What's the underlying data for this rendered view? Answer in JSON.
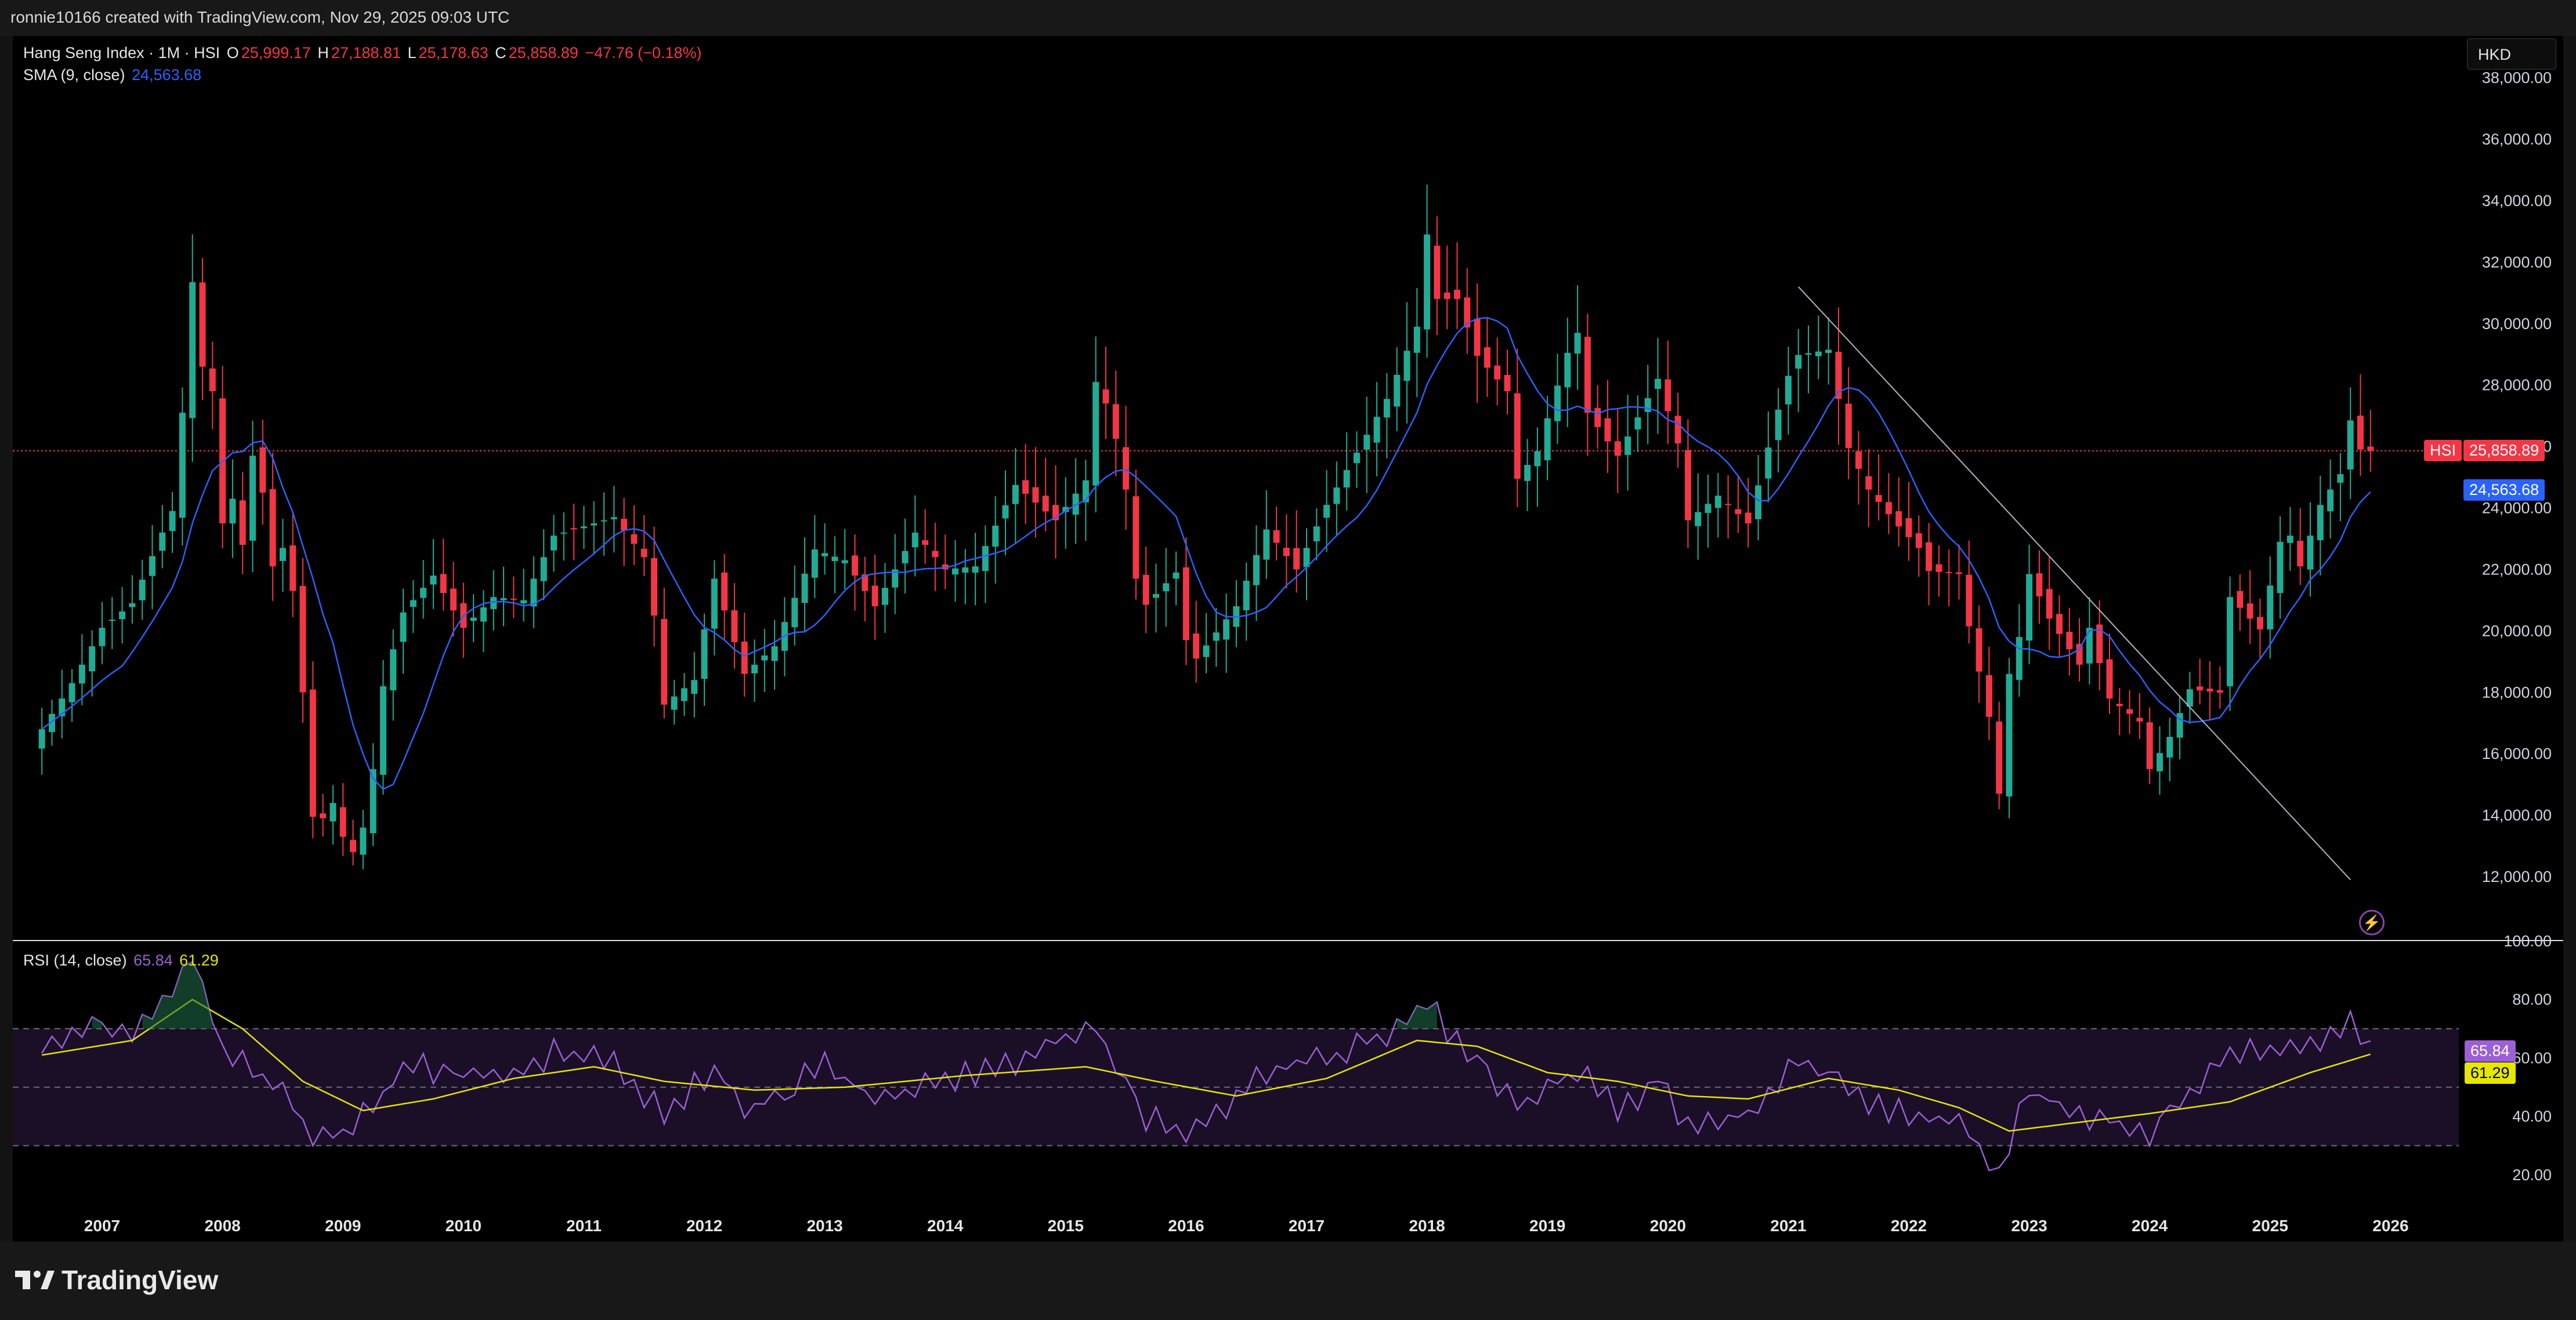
{
  "header": {
    "credit": "ronnie10166 created with TradingView.com, Nov 29, 2025 09:03 UTC"
  },
  "footer": {
    "brand": "TradingView"
  },
  "legend": {
    "title": "Hang Seng Index · 1M · HSI",
    "o_label": "O",
    "o_value": "25,999.17",
    "h_label": "H",
    "h_value": "27,188.81",
    "l_label": "L",
    "l_value": "25,178.63",
    "c_label": "C",
    "c_value": "25,858.89",
    "change": "−47.76 (−0.18%)",
    "sma_label": "SMA (9, close)",
    "sma_value": "24,563.68",
    "rsi_label": "RSI (14, close)",
    "rsi_value": "65.84",
    "rsi_ma_value": "61.29"
  },
  "controls": {
    "currency": "HKD"
  },
  "badges": {
    "symbol": "HSI",
    "last_price": "25,858.89",
    "sma_price": "24,563.68",
    "rsi": "65.84",
    "rsi_ma": "61.29"
  },
  "colors": {
    "up": "#22ab94",
    "down": "#f23645",
    "sma": "#2962ff",
    "rsi": "#9c5fd6",
    "rsi_ma": "#e6e600",
    "trendline": "#b2b5be",
    "background": "#000000"
  },
  "chart_data": [
    {
      "type": "candlestick",
      "title": "Hang Seng Index · 1M · HSI",
      "interval": "monthly",
      "ylim": [
        11000,
        38000
      ],
      "y_ticks": [
        "12,000.00",
        "14,000.00",
        "16,000.00",
        "18,000.00",
        "20,000.00",
        "22,000.00",
        "24,000.00",
        "26,000.00",
        "28,000.00",
        "30,000.00",
        "32,000.00",
        "34,000.00",
        "36,000.00",
        "38,000.00"
      ],
      "x_ticks": [
        "2007",
        "2008",
        "2009",
        "2010",
        "2011",
        "2012",
        "2013",
        "2014",
        "2015",
        "2016",
        "2017",
        "2018",
        "2019",
        "2020",
        "2021",
        "2022",
        "2023",
        "2024",
        "2025",
        "2026"
      ],
      "last_price": 25858.89,
      "sma_period": 9,
      "closes_anchor": [
        [
          "2006-07",
          16800
        ],
        [
          "2006-10",
          18300
        ],
        [
          "2007-01",
          20100
        ],
        [
          "2007-04",
          20900
        ],
        [
          "2007-07",
          23200
        ],
        [
          "2007-08",
          23900
        ],
        [
          "2007-09",
          27100
        ],
        [
          "2007-10",
          31350
        ],
        [
          "2007-11",
          28600
        ],
        [
          "2007-12",
          27800
        ],
        [
          "2008-01",
          23500
        ],
        [
          "2008-02",
          24300
        ],
        [
          "2008-03",
          22800
        ],
        [
          "2008-04",
          25700
        ],
        [
          "2008-05",
          24500
        ],
        [
          "2008-06",
          22100
        ],
        [
          "2008-07",
          22700
        ],
        [
          "2008-08",
          21300
        ],
        [
          "2008-09",
          18000
        ],
        [
          "2008-10",
          13950
        ],
        [
          "2008-11",
          13900
        ],
        [
          "2008-12",
          14400
        ],
        [
          "2009-01",
          13300
        ],
        [
          "2009-02",
          12800
        ],
        [
          "2009-03",
          13600
        ],
        [
          "2009-04",
          15500
        ],
        [
          "2009-05",
          18200
        ],
        [
          "2009-07",
          20600
        ],
        [
          "2009-10",
          21800
        ],
        [
          "2010-01",
          20100
        ],
        [
          "2010-04",
          21100
        ],
        [
          "2010-07",
          21000
        ],
        [
          "2010-10",
          23100
        ],
        [
          "2011-01",
          23400
        ],
        [
          "2011-04",
          23700
        ],
        [
          "2011-07",
          22400
        ],
        [
          "2011-08",
          20500
        ],
        [
          "2011-09",
          17600
        ],
        [
          "2011-12",
          18400
        ],
        [
          "2012-02",
          21700
        ],
        [
          "2012-05",
          18600
        ],
        [
          "2012-08",
          19500
        ],
        [
          "2012-12",
          22650
        ],
        [
          "2013-03",
          22300
        ],
        [
          "2013-06",
          20800
        ],
        [
          "2013-10",
          23200
        ],
        [
          "2014-01",
          22000
        ],
        [
          "2014-04",
          22100
        ],
        [
          "2014-08",
          24750
        ],
        [
          "2014-12",
          23600
        ],
        [
          "2015-03",
          24900
        ],
        [
          "2015-04",
          28100
        ],
        [
          "2015-05",
          27400
        ],
        [
          "2015-06",
          26250
        ],
        [
          "2015-07",
          24600
        ],
        [
          "2015-08",
          21700
        ],
        [
          "2015-09",
          20850
        ],
        [
          "2015-12",
          21900
        ],
        [
          "2016-01",
          19700
        ],
        [
          "2016-02",
          19100
        ],
        [
          "2016-06",
          20800
        ],
        [
          "2016-09",
          23300
        ],
        [
          "2016-12",
          22000
        ],
        [
          "2017-03",
          24100
        ],
        [
          "2017-06",
          25800
        ],
        [
          "2017-09",
          27550
        ],
        [
          "2017-12",
          29900
        ],
        [
          "2018-01",
          32900
        ],
        [
          "2018-02",
          30800
        ],
        [
          "2018-04",
          30800
        ],
        [
          "2018-06",
          28950
        ],
        [
          "2018-09",
          27800
        ],
        [
          "2018-10",
          24950
        ],
        [
          "2018-12",
          25850
        ],
        [
          "2019-03",
          29050
        ],
        [
          "2019-04",
          29700
        ],
        [
          "2019-05",
          27100
        ],
        [
          "2019-08",
          25700
        ],
        [
          "2019-12",
          28200
        ],
        [
          "2020-02",
          26100
        ],
        [
          "2020-03",
          23600
        ],
        [
          "2020-06",
          24400
        ],
        [
          "2020-09",
          23500
        ],
        [
          "2020-12",
          27200
        ],
        [
          "2021-01",
          28300
        ],
        [
          "2021-02",
          28980
        ],
        [
          "2021-05",
          29150
        ],
        [
          "2021-07",
          25950
        ],
        [
          "2021-09",
          24600
        ],
        [
          "2021-12",
          23400
        ],
        [
          "2022-02",
          22700
        ],
        [
          "2022-03",
          21950
        ],
        [
          "2022-06",
          21850
        ],
        [
          "2022-07",
          20150
        ],
        [
          "2022-09",
          17200
        ],
        [
          "2022-10",
          14700
        ],
        [
          "2022-11",
          18600
        ],
        [
          "2022-12",
          19800
        ],
        [
          "2023-01",
          21850
        ],
        [
          "2023-03",
          20400
        ],
        [
          "2023-06",
          18900
        ],
        [
          "2023-07",
          20100
        ],
        [
          "2023-09",
          17800
        ],
        [
          "2023-12",
          17050
        ],
        [
          "2024-01",
          15500
        ],
        [
          "2024-03",
          16550
        ],
        [
          "2024-05",
          18100
        ],
        [
          "2024-08",
          17990
        ],
        [
          "2024-09",
          21100
        ],
        [
          "2024-12",
          20050
        ],
        [
          "2025-02",
          22900
        ],
        [
          "2025-03",
          23100
        ],
        [
          "2025-04",
          22100
        ],
        [
          "2025-06",
          24100
        ],
        [
          "2025-08",
          25100
        ],
        [
          "2025-09",
          26850
        ],
        [
          "2025-10",
          25900
        ],
        [
          "2025-11",
          25858.89
        ]
      ],
      "last_bar": {
        "open": 25999.17,
        "high": 27188.81,
        "low": 25178.63,
        "close": 25858.89
      },
      "sma_last": 24563.68,
      "trendline": {
        "from": [
          "2021-02",
          31200
        ],
        "to": [
          "2025-09",
          11900
        ]
      }
    },
    {
      "type": "line",
      "title": "RSI (14, close)",
      "ylim": [
        15,
        100
      ],
      "y_ticks": [
        "20.00",
        "40.00",
        "60.00",
        "80.00",
        "100.00"
      ],
      "band": [
        30,
        70
      ],
      "midline": 50,
      "series": [
        {
          "name": "RSI",
          "last": 65.84
        },
        {
          "name": "RSI-based MA",
          "last": 61.29
        }
      ],
      "rsi_anchor": [
        [
          "2006-07",
          63
        ],
        [
          "2006-10",
          66
        ],
        [
          "2007-01",
          72
        ],
        [
          "2007-04",
          70
        ],
        [
          "2007-07",
          80
        ],
        [
          "2007-10",
          94
        ],
        [
          "2007-12",
          74
        ],
        [
          "2008-01",
          60
        ],
        [
          "2008-03",
          58
        ],
        [
          "2008-06",
          52
        ],
        [
          "2008-09",
          38
        ],
        [
          "2008-10",
          32
        ],
        [
          "2009-01",
          34
        ],
        [
          "2009-04",
          43
        ],
        [
          "2009-07",
          58
        ],
        [
          "2010-01",
          54
        ],
        [
          "2010-07",
          55
        ],
        [
          "2010-10",
          62
        ],
        [
          "2011-04",
          59
        ],
        [
          "2011-09",
          40
        ],
        [
          "2012-02",
          57
        ],
        [
          "2012-05",
          42
        ],
        [
          "2013-01",
          57
        ],
        [
          "2013-06",
          46
        ],
        [
          "2014-01",
          52
        ],
        [
          "2014-08",
          59
        ],
        [
          "2015-04",
          72
        ],
        [
          "2015-07",
          50
        ],
        [
          "2015-09",
          40
        ],
        [
          "2016-02",
          35
        ],
        [
          "2016-09",
          56
        ],
        [
          "2017-03",
          60
        ],
        [
          "2017-09",
          68
        ],
        [
          "2018-01",
          80
        ],
        [
          "2018-03",
          70
        ],
        [
          "2018-06",
          60
        ],
        [
          "2018-10",
          44
        ],
        [
          "2019-04",
          56
        ],
        [
          "2019-08",
          42
        ],
        [
          "2019-12",
          52
        ],
        [
          "2020-03",
          37
        ],
        [
          "2020-09",
          42
        ],
        [
          "2021-02",
          58
        ],
        [
          "2021-06",
          55
        ],
        [
          "2021-09",
          44
        ],
        [
          "2022-02",
          40
        ],
        [
          "2022-06",
          39
        ],
        [
          "2022-10",
          21
        ],
        [
          "2023-01",
          49
        ],
        [
          "2023-06",
          40
        ],
        [
          "2023-12",
          37
        ],
        [
          "2024-01",
          34
        ],
        [
          "2024-05",
          47
        ],
        [
          "2024-09",
          62
        ],
        [
          "2025-03",
          63
        ],
        [
          "2025-06",
          67
        ],
        [
          "2025-09",
          72
        ],
        [
          "2025-11",
          65.84
        ]
      ],
      "rsi_ma_anchor": [
        [
          "2006-07",
          61
        ],
        [
          "2007-04",
          66
        ],
        [
          "2007-10",
          80
        ],
        [
          "2008-03",
          70
        ],
        [
          "2008-09",
          52
        ],
        [
          "2009-03",
          42
        ],
        [
          "2009-10",
          46
        ],
        [
          "2010-06",
          53
        ],
        [
          "2011-02",
          57
        ],
        [
          "2011-09",
          52
        ],
        [
          "2012-06",
          49
        ],
        [
          "2013-03",
          50
        ],
        [
          "2014-03",
          54
        ],
        [
          "2015-03",
          57
        ],
        [
          "2015-10",
          52
        ],
        [
          "2016-06",
          47
        ],
        [
          "2017-03",
          53
        ],
        [
          "2017-12",
          66
        ],
        [
          "2018-06",
          64
        ],
        [
          "2019-01",
          55
        ],
        [
          "2019-08",
          52
        ],
        [
          "2020-03",
          47
        ],
        [
          "2020-09",
          46
        ],
        [
          "2021-05",
          53
        ],
        [
          "2021-12",
          49
        ],
        [
          "2022-06",
          43
        ],
        [
          "2022-11",
          35
        ],
        [
          "2023-06",
          38
        ],
        [
          "2024-01",
          41
        ],
        [
          "2024-09",
          45
        ],
        [
          "2025-05",
          55
        ],
        [
          "2025-11",
          61.29
        ]
      ]
    }
  ]
}
